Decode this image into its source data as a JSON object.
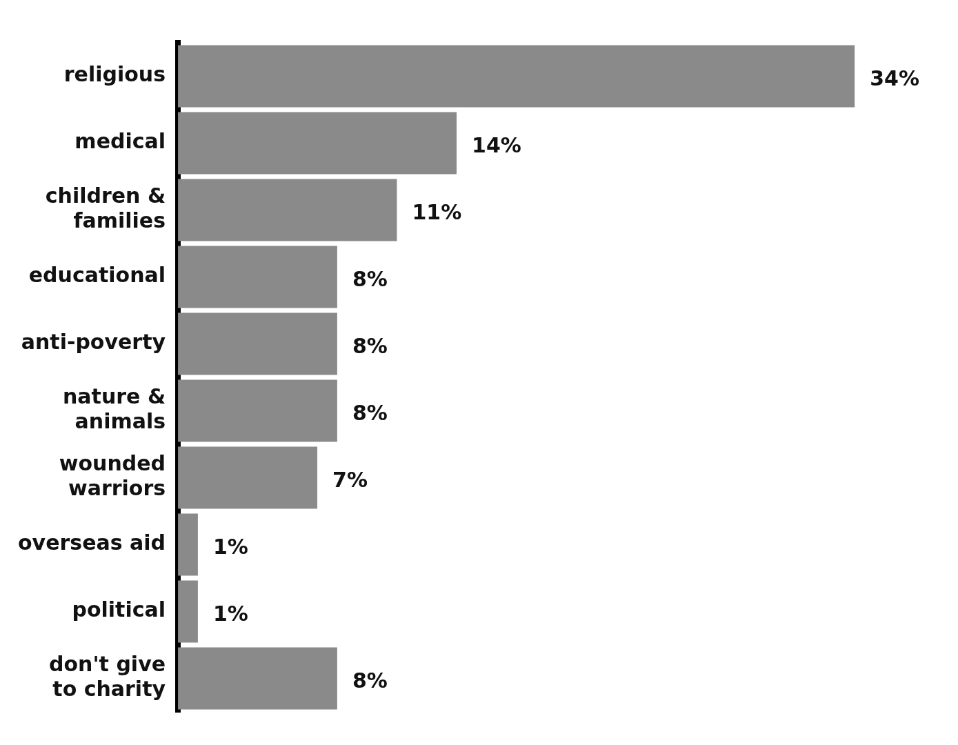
{
  "chart_data": {
    "type": "bar",
    "orientation": "horizontal",
    "categories": [
      "religious",
      "medical",
      "children & families",
      "educational",
      "anti-poverty",
      "nature & animals",
      "wounded warriors",
      "overseas aid",
      "political",
      "don't give to charity"
    ],
    "values": [
      34,
      14,
      11,
      8,
      8,
      8,
      7,
      1,
      1,
      8
    ],
    "value_labels": [
      "34%",
      "14%",
      "11%",
      "8%",
      "8%",
      "8%",
      "7%",
      "1%",
      "1%",
      "8%"
    ],
    "color": "#8a8a8a",
    "grid": false,
    "legend": false,
    "tick_labels": "y"
  }
}
